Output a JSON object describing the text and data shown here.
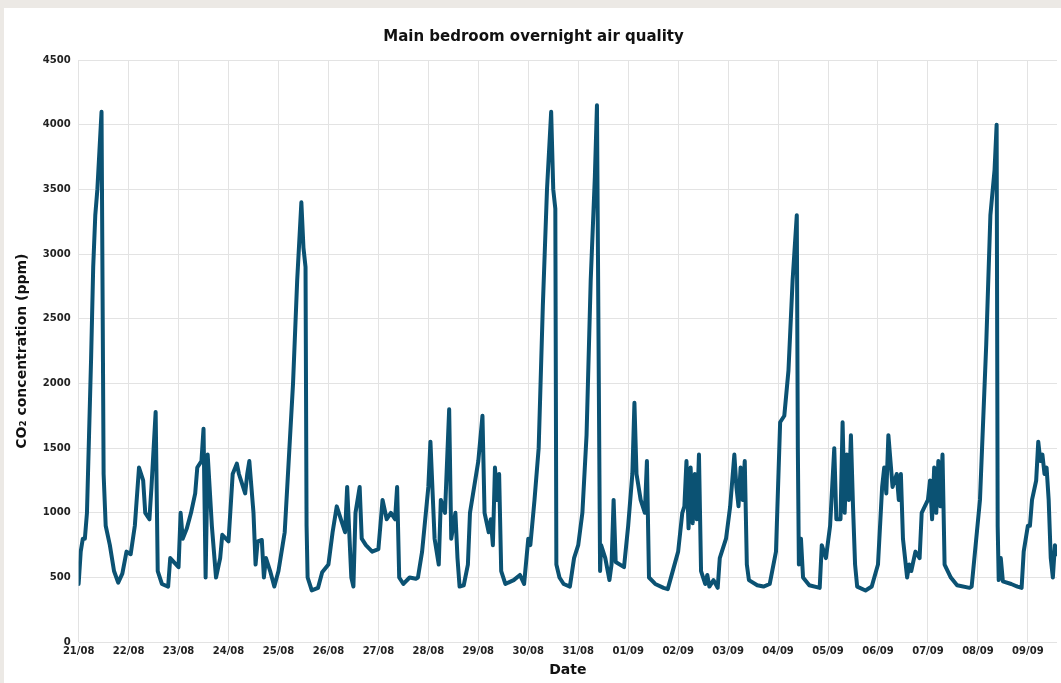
{
  "chart_data": {
    "type": "line",
    "title": "Main bedroom overnight air quality",
    "xlabel": "Date",
    "ylabel": "CO₂ concentration (ppm)",
    "xlim": [
      "--08-21",
      "--09-09T14:00"
    ],
    "xticks": [
      {
        "value": "--08-21",
        "label": "21/08"
      },
      {
        "value": "--08-22",
        "label": "22/08"
      },
      {
        "value": "--08-23",
        "label": "23/08"
      },
      {
        "value": "--08-24",
        "label": "24/08"
      },
      {
        "value": "--08-25",
        "label": "25/08"
      },
      {
        "value": "--08-26",
        "label": "26/08"
      },
      {
        "value": "--08-27",
        "label": "27/08"
      },
      {
        "value": "--08-28",
        "label": "28/08"
      },
      {
        "value": "--08-29",
        "label": "29/08"
      },
      {
        "value": "--08-30",
        "label": "30/08"
      },
      {
        "value": "--08-31",
        "label": "31/08"
      },
      {
        "value": "--09-01",
        "label": "01/09"
      },
      {
        "value": "--09-02",
        "label": "02/09"
      },
      {
        "value": "--09-03",
        "label": "03/09"
      },
      {
        "value": "--09-04",
        "label": "04/09"
      },
      {
        "value": "--09-05",
        "label": "05/09"
      },
      {
        "value": "--09-06",
        "label": "06/09"
      },
      {
        "value": "--09-07",
        "label": "07/09"
      },
      {
        "value": "--09-08",
        "label": "08/09"
      },
      {
        "value": "--09-09",
        "label": "09/09"
      }
    ],
    "ylim": [
      0,
      4500
    ],
    "yticks": [
      0,
      500,
      1000,
      1500,
      2000,
      2500,
      3000,
      3500,
      4000,
      4500
    ],
    "grid": true,
    "marker": "none",
    "line_style": "solid",
    "series": [
      {
        "color": "#0b5273",
        "x": [
          "--08-21T00:00",
          "--08-21T01:00",
          "--08-21T02:00",
          "--08-21T03:00",
          "--08-21T04:00",
          "--08-21T05:00",
          "--08-21T06:00",
          "--08-21T07:00",
          "--08-21T08:00",
          "--08-21T09:00",
          "--08-21T10:00",
          "--08-21T11:00",
          "--08-21T12:00",
          "--08-21T13:00",
          "--08-21T15:00",
          "--08-21T17:00",
          "--08-21T19:00",
          "--08-21T21:00",
          "--08-21T23:00",
          "--08-22T01:00",
          "--08-22T03:00",
          "--08-22T05:00",
          "--08-22T07:00",
          "--08-22T08:00",
          "--08-22T10:00",
          "--08-22T11:00",
          "--08-22T13:00",
          "--08-22T14:00",
          "--08-22T16:00",
          "--08-22T19:00",
          "--08-22T20:00",
          "--08-23T00:00",
          "--08-23T01:00",
          "--08-23T02:00",
          "--08-23T04:00",
          "--08-23T06:00",
          "--08-23T08:00",
          "--08-23T09:00",
          "--08-23T11:00",
          "--08-23T12:00",
          "--08-23T13:00",
          "--08-23T14:00",
          "--08-23T16:00",
          "--08-23T18:00",
          "--08-23T20:00",
          "--08-23T21:00",
          "--08-24T00:00",
          "--08-24T02:00",
          "--08-24T04:00",
          "--08-24T05:00",
          "--08-24T07:00",
          "--08-24T08:00",
          "--08-24T09:00",
          "--08-24T10:00",
          "--08-24T12:00",
          "--08-24T13:00",
          "--08-24T14:00",
          "--08-24T16:00",
          "--08-24T17:00",
          "--08-24T18:00",
          "--08-24T20:00",
          "--08-24T22:00",
          "--08-25T00:00",
          "--08-25T02:00",
          "--08-25T03:00",
          "--08-25T07:00",
          "--08-25T09:00",
          "--08-25T11:00",
          "--08-25T12:00",
          "--08-25T13:00",
          "--08-25T13:30",
          "--08-25T14:00",
          "--08-25T16:00",
          "--08-25T19:00",
          "--08-25T21:00",
          "--08-26T00:00",
          "--08-26T02:00",
          "--08-26T04:00",
          "--08-26T06:00",
          "--08-26T08:00",
          "--08-26T09:00",
          "--08-26T11:00",
          "--08-26T12:00",
          "--08-26T13:00",
          "--08-26T15:00",
          "--08-26T16:00",
          "--08-26T18:00",
          "--08-26T21:00",
          "--08-27T00:00",
          "--08-27T02:00",
          "--08-27T04:00",
          "--08-27T06:00",
          "--08-27T08:00",
          "--08-27T09:00",
          "--08-27T10:00",
          "--08-27T12:00",
          "--08-27T15:00",
          "--08-27T18:00",
          "--08-27T19:00",
          "--08-27T21:00",
          "--08-28T00:00",
          "--08-28T01:00",
          "--08-28T03:00",
          "--08-28T05:00",
          "--08-28T06:00",
          "--08-28T08:00",
          "--08-28T10:00",
          "--08-28T11:00",
          "--08-28T12:00",
          "--08-28T13:00",
          "--08-28T14:00",
          "--08-28T15:00",
          "--08-28T17:00",
          "--08-28T19:00",
          "--08-28T20:00",
          "--08-29T00:00",
          "--08-29T02:00",
          "--08-29T03:00",
          "--08-29T05:00",
          "--08-29T06:00",
          "--08-29T07:00",
          "--08-29T08:00",
          "--08-29T09:00",
          "--08-29T10:00",
          "--08-29T11:00",
          "--08-29T13:00",
          "--08-29T17:00",
          "--08-29T20:00",
          "--08-29T22:00",
          "--08-30T00:00",
          "--08-30T01:00",
          "--08-30T03:00",
          "--08-30T05:00",
          "--08-30T07:00",
          "--08-30T09:00",
          "--08-30T11:00",
          "--08-30T12:00",
          "--08-30T13:00",
          "--08-30T13:30",
          "--08-30T15:00",
          "--08-30T17:00",
          "--08-30T20:00",
          "--08-30T22:00",
          "--08-31T00:00",
          "--08-31T02:00",
          "--08-31T04:00",
          "--08-31T06:00",
          "--08-31T08:00",
          "--08-31T09:00",
          "--08-31T10:30",
          "--08-31T11:00",
          "--08-31T13:00",
          "--08-31T15:00",
          "--08-31T16:00",
          "--08-31T17:00",
          "--08-31T18:00",
          "--08-31T22:00",
          "--09-01T00:00",
          "--09-01T02:00",
          "--09-01T03:00",
          "--09-01T04:00",
          "--09-01T06:00",
          "--09-01T08:00",
          "--09-01T09:00",
          "--09-01T10:00",
          "--09-01T13:00",
          "--09-01T17:00",
          "--09-01T19:00",
          "--09-02T00:00",
          "--09-02T02:00",
          "--09-02T03:00",
          "--09-02T04:00",
          "--09-02T05:00",
          "--09-02T06:00",
          "--09-02T07:00",
          "--09-02T08:00",
          "--09-02T09:00",
          "--09-02T10:00",
          "--09-02T11:00",
          "--09-02T13:00",
          "--09-02T14:00",
          "--09-02T15:00",
          "--09-02T17:00",
          "--09-02T19:00",
          "--09-02T20:00",
          "--09-02T23:00",
          "--09-03T01:00",
          "--09-03T03:00",
          "--09-03T04:00",
          "--09-03T05:00",
          "--09-03T06:00",
          "--09-03T07:00",
          "--09-03T08:00",
          "--09-03T09:00",
          "--09-03T10:00",
          "--09-03T14:00",
          "--09-03T17:00",
          "--09-03T20:00",
          "--09-03T23:00",
          "--09-04T01:00",
          "--09-04T03:00",
          "--09-04T05:00",
          "--09-04T07:00",
          "--09-04T09:00",
          "--09-04T09:30",
          "--09-04T10:00",
          "--09-04T11:00",
          "--09-04T12:00",
          "--09-04T15:00",
          "--09-04T20:00",
          "--09-04T21:00",
          "--09-04T23:00",
          "--09-05T01:00",
          "--09-05T03:00",
          "--09-05T04:00",
          "--09-05T06:00",
          "--09-05T07:00",
          "--09-05T08:00",
          "--09-05T09:00",
          "--09-05T10:00",
          "--09-05T11:00",
          "--09-05T12:00",
          "--09-05T13:00",
          "--09-05T14:00",
          "--09-05T18:00",
          "--09-05T21:00",
          "--09-06T00:00",
          "--09-06T02:00",
          "--09-06T03:00",
          "--09-06T04:00",
          "--09-06T05:00",
          "--09-06T06:00",
          "--09-06T07:00",
          "--09-06T09:00",
          "--09-06T10:00",
          "--09-06T11:00",
          "--09-06T12:00",
          "--09-06T14:00",
          "--09-06T15:00",
          "--09-06T16:00",
          "--09-06T18:00",
          "--09-06T20:00",
          "--09-06T21:00",
          "--09-07T00:00",
          "--09-07T01:00",
          "--09-07T02:00",
          "--09-07T03:00",
          "--09-07T04:00",
          "--09-07T05:00",
          "--09-07T06:00",
          "--09-07T07:00",
          "--09-07T08:00",
          "--09-07T11:00",
          "--09-07T14:00",
          "--09-07T20:00",
          "--09-07T21:00",
          "--09-08T01:00",
          "--09-08T04:00",
          "--09-08T06:00",
          "--09-08T08:00",
          "--09-08T09:00",
          "--09-08T09:30",
          "--09-08T10:00",
          "--09-08T11:00",
          "--09-08T12:00",
          "--09-08T16:00",
          "--09-08T19:00",
          "--09-08T21:00",
          "--09-08T22:00",
          "--09-09T00:00",
          "--09-09T01:00",
          "--09-09T02:00",
          "--09-09T04:00",
          "--09-09T05:00",
          "--09-09T06:00",
          "--09-09T07:00",
          "--09-09T08:00",
          "--09-09T09:00",
          "--09-09T10:00",
          "--09-09T11:00",
          "--09-09T12:00",
          "--09-09T13:00",
          "--09-09T14:00"
        ],
        "values": [
          450,
          700,
          800,
          800,
          1000,
          1600,
          2200,
          2900,
          3300,
          3500,
          3800,
          4100,
          1300,
          900,
          750,
          550,
          460,
          530,
          700,
          680,
          900,
          1350,
          1250,
          1000,
          950,
          1200,
          1780,
          550,
          450,
          430,
          650,
          580,
          1000,
          800,
          880,
          1000,
          1150,
          1350,
          1400,
          1650,
          500,
          1450,
          900,
          500,
          650,
          830,
          780,
          1300,
          1380,
          1300,
          1200,
          1150,
          1300,
          1400,
          1000,
          600,
          780,
          790,
          500,
          650,
          550,
          430,
          550,
          750,
          850,
          2000,
          2800,
          3400,
          3050,
          2900,
          900,
          500,
          400,
          420,
          540,
          600,
          850,
          1050,
          950,
          850,
          1200,
          500,
          430,
          1000,
          1200,
          800,
          750,
          700,
          720,
          1100,
          950,
          1000,
          950,
          1200,
          500,
          450,
          500,
          490,
          500,
          700,
          1200,
          1550,
          800,
          600,
          1100,
          1000,
          1800,
          800,
          900,
          1000,
          650,
          430,
          440,
          600,
          1000,
          1400,
          1750,
          1000,
          850,
          950,
          750,
          1350,
          1100,
          1300,
          550,
          450,
          480,
          520,
          450,
          800,
          750,
          1100,
          1500,
          2600,
          3500,
          4100,
          3500,
          3350,
          600,
          500,
          450,
          430,
          650,
          750,
          1000,
          1600,
          2800,
          3600,
          4150,
          550,
          750,
          650,
          480,
          600,
          1100,
          620,
          580,
          900,
          1300,
          1850,
          1300,
          1100,
          1000,
          1400,
          500,
          450,
          420,
          410,
          700,
          1000,
          1050,
          1400,
          880,
          1350,
          920,
          1300,
          950,
          1450,
          550,
          450,
          520,
          430,
          480,
          420,
          650,
          800,
          1050,
          1450,
          1200,
          1050,
          1350,
          1100,
          1400,
          600,
          480,
          440,
          430,
          450,
          700,
          1700,
          1750,
          2100,
          2800,
          3300,
          1500,
          600,
          800,
          500,
          440,
          420,
          750,
          650,
          900,
          1500,
          950,
          950,
          1700,
          1000,
          1450,
          1100,
          1600,
          1050,
          600,
          430,
          400,
          430,
          600,
          1200,
          1350,
          1150,
          1600,
          1400,
          1200,
          1300,
          1100,
          1300,
          800,
          500,
          600,
          550,
          700,
          650,
          1000,
          1100,
          1250,
          950,
          1350,
          1000,
          1400,
          1050,
          1450,
          600,
          500,
          440,
          420,
          430,
          1100,
          2300,
          3300,
          3650,
          4000,
          900,
          480,
          650,
          470,
          450,
          430,
          420,
          700,
          900,
          900,
          1100,
          1250,
          1550,
          1400,
          1450,
          1300,
          1350,
          1100,
          650,
          500,
          750,
          680
        ]
      }
    ]
  }
}
